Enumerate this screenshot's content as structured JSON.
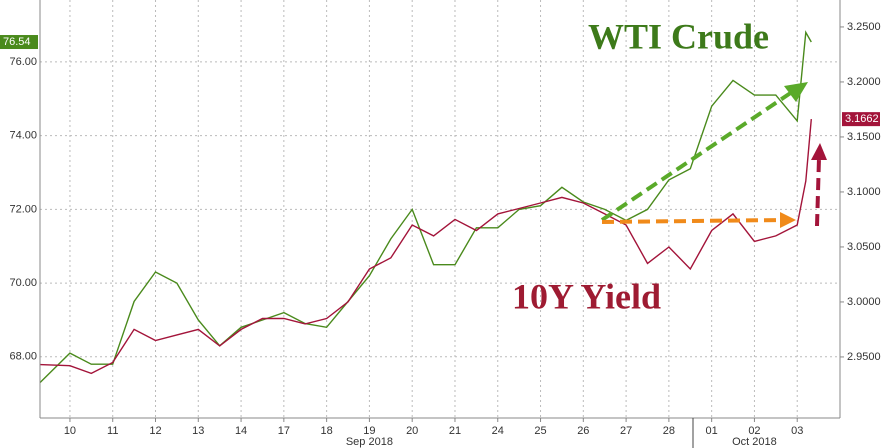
{
  "chart_data": {
    "type": "line",
    "x": [
      -0.7,
      0,
      0.5,
      1,
      1.5,
      2,
      2.5,
      3,
      3.5,
      4,
      4.5,
      5,
      5.5,
      6,
      6.5,
      7,
      7.5,
      8,
      8.5,
      9,
      9.5,
      10,
      10.5,
      11,
      11.5,
      12,
      12.5,
      13,
      13.5,
      14,
      14.5,
      15,
      15.5,
      16,
      16.5,
      17,
      17.2,
      17.33
    ],
    "xlim": [
      -0.7,
      18
    ],
    "xticks": [
      {
        "value": 0,
        "label": "10"
      },
      {
        "value": 1,
        "label": "11"
      },
      {
        "value": 2,
        "label": "12"
      },
      {
        "value": 3,
        "label": "13"
      },
      {
        "value": 4,
        "label": "14"
      },
      {
        "value": 5,
        "label": "17"
      },
      {
        "value": 6,
        "label": "18"
      },
      {
        "value": 7,
        "label": "19"
      },
      {
        "value": 8,
        "label": "20"
      },
      {
        "value": 9,
        "label": "21"
      },
      {
        "value": 10,
        "label": "24"
      },
      {
        "value": 11,
        "label": "25"
      },
      {
        "value": 12,
        "label": "26"
      },
      {
        "value": 13,
        "label": "27"
      },
      {
        "value": 14,
        "label": "28"
      },
      {
        "value": 15,
        "label": "01"
      },
      {
        "value": 16,
        "label": "02"
      },
      {
        "value": 17,
        "label": "03"
      }
    ],
    "x_groups": [
      {
        "label": "Sep 2018",
        "from": 0,
        "to": 14
      },
      {
        "label": "Oct 2018",
        "from": 15,
        "to": 17
      }
    ],
    "ylim": [
      66.34,
      77.68
    ],
    "yticks": [
      {
        "value": 68,
        "label": "68.00"
      },
      {
        "value": 70,
        "label": "70.00"
      },
      {
        "value": 72,
        "label": "72.00"
      },
      {
        "value": 74,
        "label": "74.00"
      },
      {
        "value": 76,
        "label": "76.00"
      }
    ],
    "y2lim": [
      2.8945,
      3.2745
    ],
    "y2ticks": [
      {
        "value": 2.95,
        "label": "2.9500"
      },
      {
        "value": 3.0,
        "label": "3.0000"
      },
      {
        "value": 3.05,
        "label": "3.0500"
      },
      {
        "value": 3.1,
        "label": "3.1000"
      },
      {
        "value": 3.15,
        "label": "3.1500"
      },
      {
        "value": 3.2,
        "label": "3.2000"
      },
      {
        "value": 3.25,
        "label": "3.2500"
      }
    ],
    "grid": true,
    "series": [
      {
        "name": "WTI Crude",
        "color": "#4a8a1c",
        "last_label": "76.54",
        "values": [
          67.3,
          68.1,
          67.8,
          67.8,
          69.5,
          70.3,
          70.0,
          69.0,
          68.3,
          68.8,
          69.0,
          69.2,
          68.9,
          68.8,
          69.5,
          70.2,
          71.2,
          72.0,
          70.5,
          70.5,
          71.5,
          71.5,
          72.0,
          72.1,
          72.6,
          72.2,
          72.0,
          71.7,
          72.0,
          72.8,
          73.1,
          74.8,
          75.5,
          75.1,
          75.1,
          74.4,
          76.8,
          76.54
        ]
      },
      {
        "name": "10Y Yield",
        "color": "#a3143a",
        "axis": "y2",
        "last_label": "3.1662",
        "values": [
          2.943,
          2.942,
          2.935,
          2.945,
          2.975,
          2.965,
          2.97,
          2.975,
          2.96,
          2.975,
          2.985,
          2.985,
          2.98,
          2.985,
          3.0,
          3.03,
          3.04,
          3.07,
          3.06,
          3.075,
          3.065,
          3.08,
          3.085,
          3.09,
          3.095,
          3.09,
          3.08,
          3.07,
          3.035,
          3.05,
          3.03,
          3.065,
          3.08,
          3.055,
          3.06,
          3.07,
          3.11,
          3.1662
        ]
      }
    ]
  }
}
